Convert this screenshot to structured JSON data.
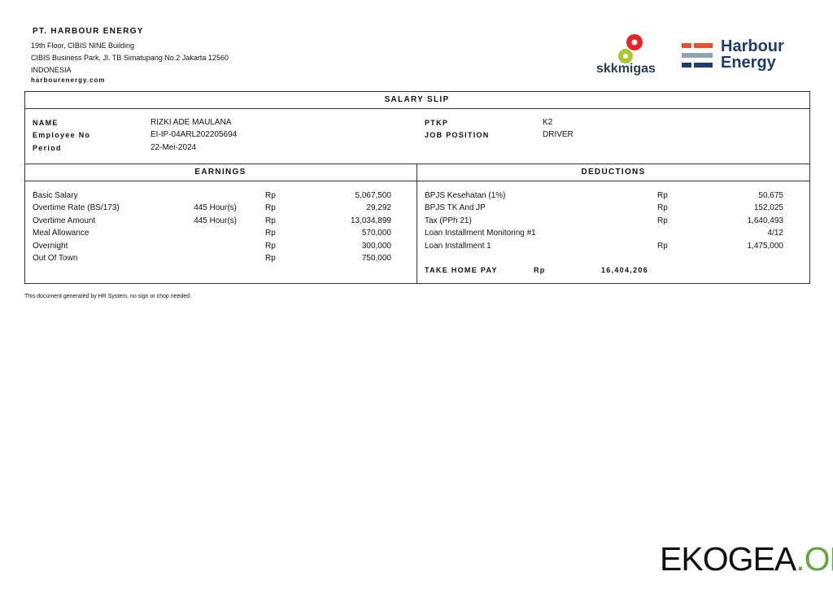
{
  "company": {
    "name": "PT. HARBOUR ENERGY",
    "address1": "19th Floor, CIBIS NINE Building",
    "address2": "CIBIS Business Park, Jl. TB Simatupang No.2 Jakarta 12560",
    "country": "INDONESIA",
    "website": "harbourenergy.com"
  },
  "logos": {
    "skkmigas": "skkmigas",
    "harbour_line1": "Harbour",
    "harbour_line2": "Energy",
    "colors": {
      "red": "#e3262e",
      "lime": "#a8c83a",
      "orange": "#e8502a",
      "gray": "#8fa3b1",
      "navy": "#1f3c6e"
    }
  },
  "slip": {
    "title": "SALARY SLIP",
    "info_left": [
      {
        "label": "NAME",
        "value": "RIZKI ADE MAULANA"
      },
      {
        "label": "Employee No",
        "value": "EI-IP-04ARL202205694"
      },
      {
        "label": "Period",
        "value": "22-Mei-2024"
      }
    ],
    "info_right": [
      {
        "label": "PTKP",
        "value": "K2"
      },
      {
        "label": "JOB POSITION",
        "value": "DRIVER"
      }
    ],
    "earnings": {
      "title": "EARNINGS",
      "rows": [
        {
          "label": "Basic Salary",
          "qty": "",
          "cur": "Rp",
          "amount": "5,067,500"
        },
        {
          "label": "Overtime Rate (BS/173)",
          "qty": "445 Hour(s)",
          "cur": "Rp",
          "amount": "29,292"
        },
        {
          "label": "Overtime Amount",
          "qty": "445 Hour(s)",
          "cur": "Rp",
          "amount": "13,034,899"
        },
        {
          "label": "Meal Allowance",
          "qty": "",
          "cur": "Rp",
          "amount": "570,000"
        },
        {
          "label": "Overnight",
          "qty": "",
          "cur": "Rp",
          "amount": "300,000"
        },
        {
          "label": "Out Of Town",
          "qty": "",
          "cur": "Rp",
          "amount": "750,000"
        }
      ]
    },
    "deductions": {
      "title": "DEDUCTIONS",
      "rows": [
        {
          "label": "BPJS Kesehatan (1%)",
          "cur": "Rp",
          "amount": "50,675"
        },
        {
          "label": "BPJS TK And JP",
          "cur": "Rp",
          "amount": "152,025"
        },
        {
          "label": "Tax (PPh 21)",
          "cur": "Rp",
          "amount": "1,640,493"
        },
        {
          "label": "Loan Installment Monitoring #1",
          "cur": "",
          "amount": "4/12"
        },
        {
          "label": "Loan Installment 1",
          "cur": "Rp",
          "amount": "1,475,000"
        }
      ]
    },
    "take_home": {
      "label": "TAKE HOME PAY",
      "cur": "Rp",
      "amount": "16,404,206"
    }
  },
  "footer_note": "This document generated by HR System, no sign or chop needed.",
  "watermark": {
    "part1": "EKOGEA",
    "part2": ".ORG",
    "color2": "#5fa83a"
  }
}
